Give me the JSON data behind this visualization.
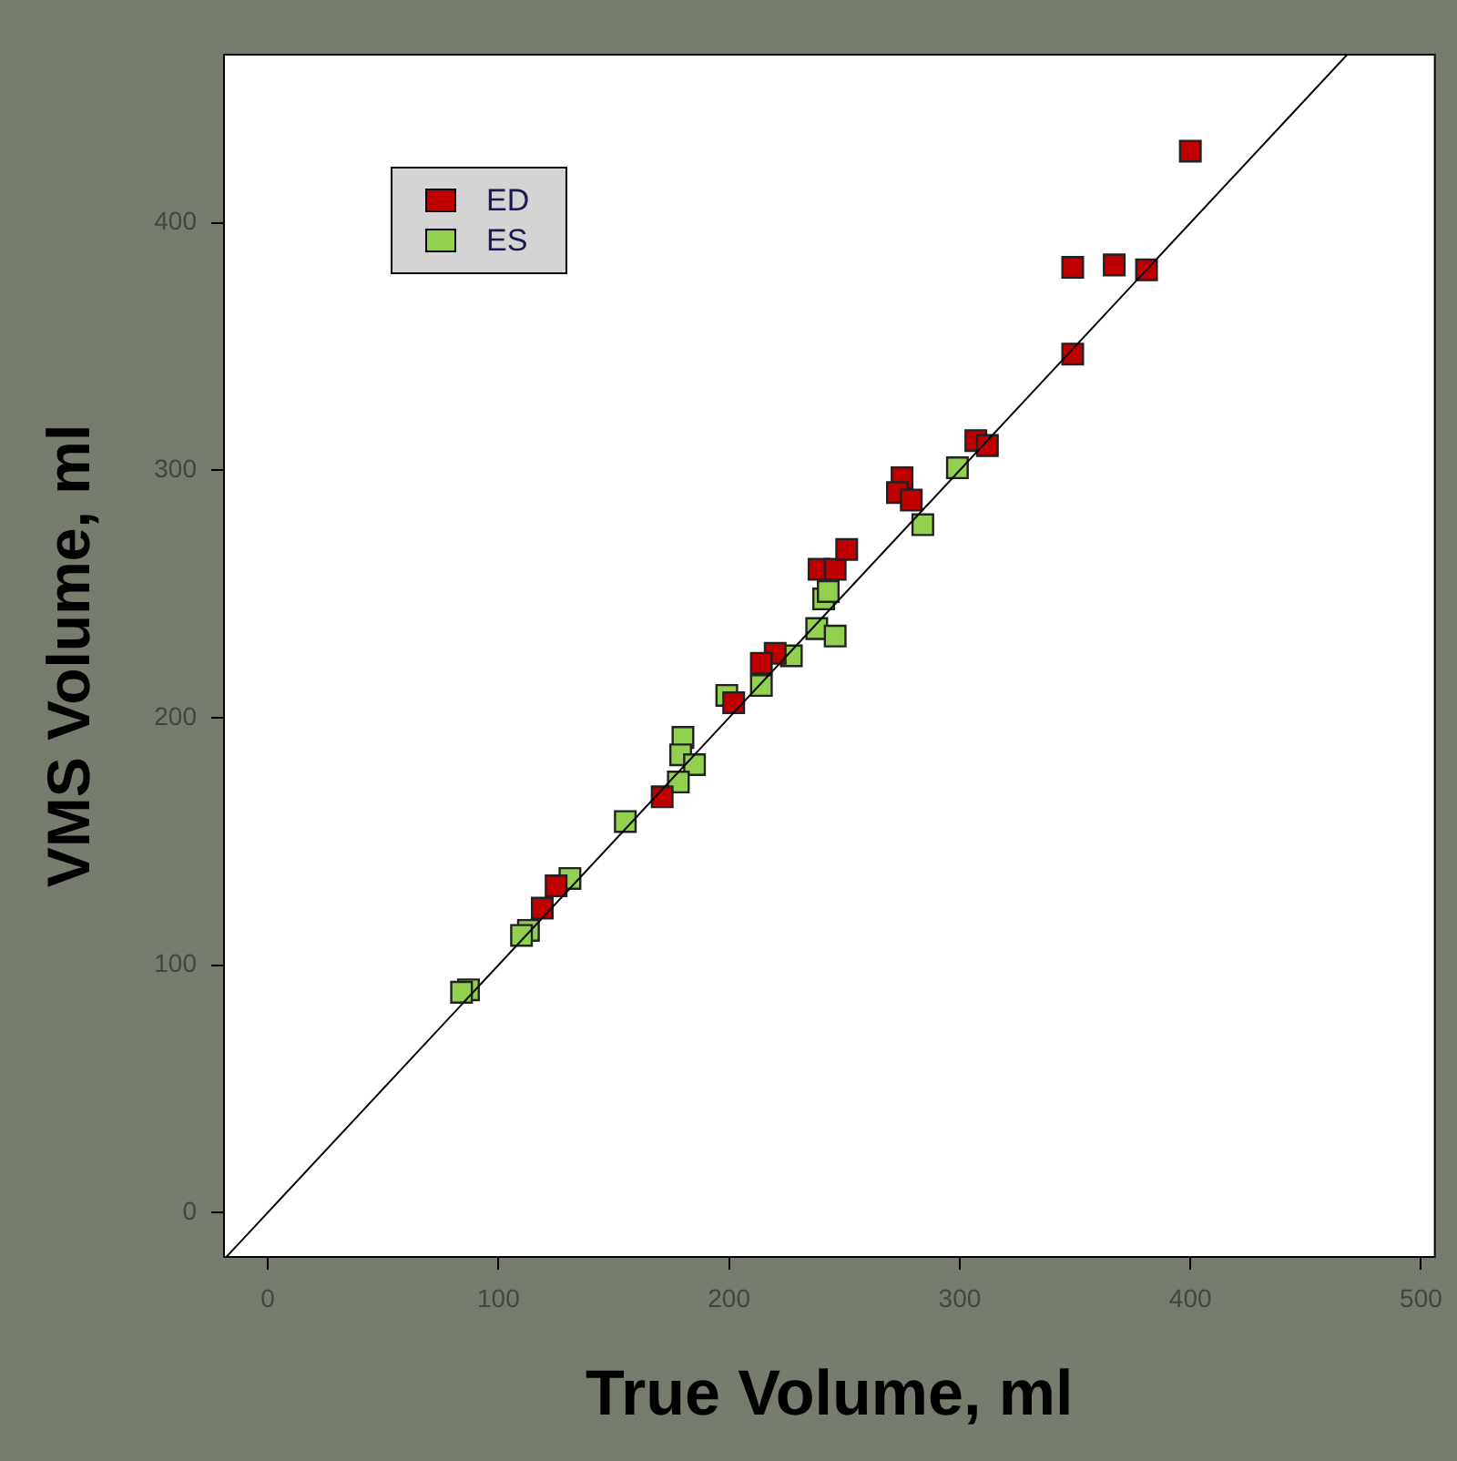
{
  "chart_data": {
    "type": "scatter",
    "xlabel": "True Volume, ml",
    "ylabel": "VMS Volume, ml",
    "xlim": [
      -19,
      506
    ],
    "ylim": [
      -18,
      468
    ],
    "xticks": [
      0,
      100,
      200,
      300,
      400,
      500
    ],
    "yticks": [
      0,
      100,
      200,
      300,
      400
    ],
    "grid": false,
    "legend": "top left",
    "marker": "square",
    "series": [
      {
        "name": "ED",
        "color": "#c00000",
        "x": [
          400,
          349,
          349,
          367,
          381,
          307,
          312,
          275,
          273,
          279,
          239,
          246,
          251,
          220,
          214,
          202,
          171,
          125,
          119
        ],
        "values": [
          429,
          382,
          347,
          383,
          381,
          312,
          310,
          297,
          291,
          288,
          260,
          260,
          268,
          226,
          222,
          206,
          168,
          132,
          123
        ]
      },
      {
        "name": "ES",
        "color": "#92d050",
        "x": [
          299,
          284,
          241,
          243,
          238,
          246,
          227,
          214,
          199,
          180,
          179,
          185,
          178,
          155,
          131,
          113,
          110,
          87,
          84
        ],
        "values": [
          301,
          278,
          248,
          251,
          236,
          233,
          225,
          213,
          209,
          192,
          185,
          181,
          174,
          158,
          135,
          114,
          112,
          90,
          89
        ]
      },
      {
        "type": "line",
        "color": "#000000",
        "marker": "none",
        "x": [
          -18,
          468
        ],
        "values": [
          -18,
          468
        ]
      }
    ]
  }
}
